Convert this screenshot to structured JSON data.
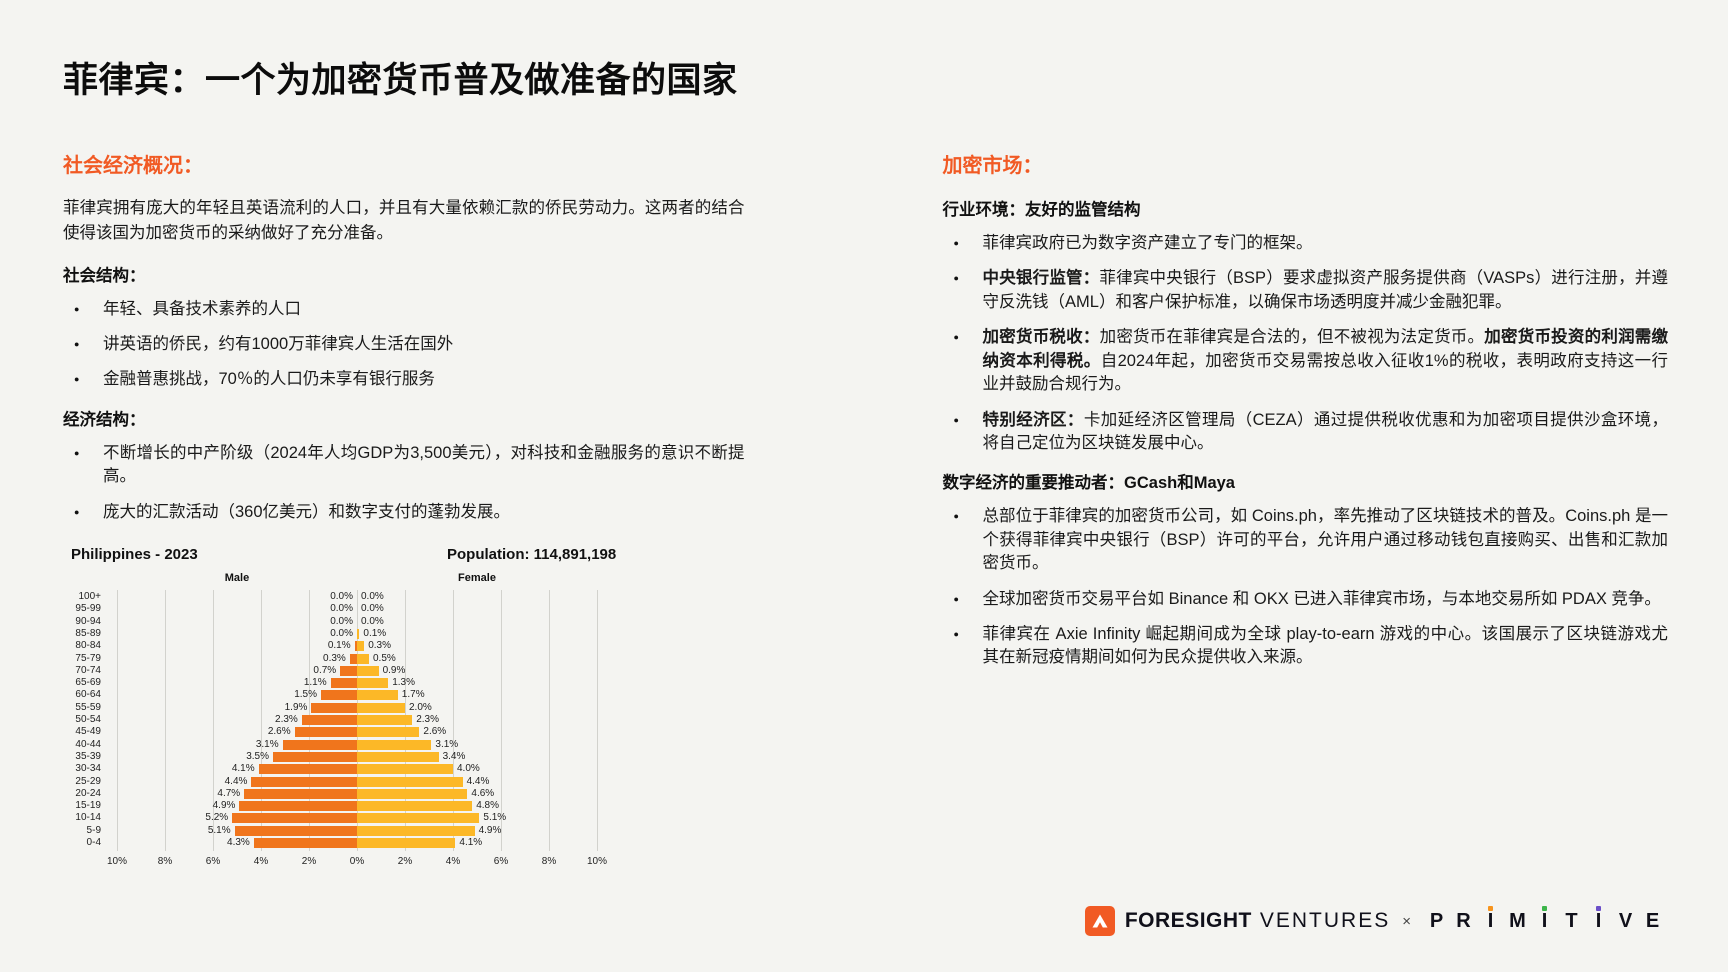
{
  "page": {
    "title": "菲律宾：一个为加密货币普及做准备的国家",
    "background_color": "#f4f4f1",
    "accent_color": "#f15a24"
  },
  "left": {
    "heading": "社会经济概况：",
    "intro": "菲律宾拥有庞大的年轻且英语流利的人口，并且有大量依赖汇款的侨民劳动力。这两者的结合使得该国为加密货币的采纳做好了充分准备。",
    "sections": [
      {
        "subheading": "社会结构：",
        "bullets": [
          {
            "runs": [
              {
                "text": "年轻、具备技术素养的人口",
                "bold": false
              }
            ]
          },
          {
            "runs": [
              {
                "text": "讲英语的侨民，约有1000万菲律宾人生活在国外",
                "bold": false
              }
            ]
          },
          {
            "runs": [
              {
                "text": "金融普惠挑战，70％的人口仍未享有银行服务",
                "bold": false
              }
            ]
          }
        ]
      },
      {
        "subheading": "经济结构：",
        "bullets": [
          {
            "runs": [
              {
                "text": "不断增长的中产阶级（2024年人均GDP为3,500美元），对科技和金融服务的意识不断提高。",
                "bold": false
              }
            ]
          },
          {
            "runs": [
              {
                "text": "庞大的汇款活动（360亿美元）和数字支付的蓬勃发展。",
                "bold": false
              }
            ]
          }
        ]
      }
    ]
  },
  "right": {
    "heading": "加密市场：",
    "sections": [
      {
        "subheading": "行业环境：友好的监管结构",
        "bullets": [
          {
            "runs": [
              {
                "text": "菲律宾政府已为数字资产建立了专门的框架。",
                "bold": false
              }
            ]
          },
          {
            "runs": [
              {
                "text": "中央银行监管：",
                "bold": true
              },
              {
                "text": "菲律宾中央银行（BSP）要求虚拟资产服务提供商（VASPs）进行注册，并遵守反洗钱（AML）和客户保护标准，以确保市场透明度并减少金融犯罪。",
                "bold": false
              }
            ]
          },
          {
            "runs": [
              {
                "text": "加密货币税收：",
                "bold": true
              },
              {
                "text": "加密货币在菲律宾是合法的，但不被视为法定货币。",
                "bold": false
              },
              {
                "text": "加密货币投资的利润需缴纳资本利得税。",
                "bold": true
              },
              {
                "text": "自2024年起，加密货币交易需按总收入征收1%的税收，表明政府支持这一行业并鼓励合规行为。",
                "bold": false
              }
            ]
          },
          {
            "runs": [
              {
                "text": "特别经济区：",
                "bold": true
              },
              {
                "text": "卡加延经济区管理局（CEZA）通过提供税收优惠和为加密项目提供沙盒环境，将自己定位为区块链发展中心。",
                "bold": false
              }
            ]
          }
        ]
      },
      {
        "subheading": "数字经济的重要推动者：GCash和Maya",
        "bullets": [
          {
            "runs": [
              {
                "text": "总部位于菲律宾的加密货币公司，如 Coins.ph，率先推动了区块链技术的普及。Coins.ph 是一个获得菲律宾中央银行（BSP）许可的平台，允许用户通过移动钱包直接购买、出售和汇款加密货币。",
                "bold": false
              }
            ]
          },
          {
            "runs": [
              {
                "text": "全球加密货币交易平台如 Binance 和 OKX 已进入菲律宾市场，与本地交易所如 PDAX 竞争。",
                "bold": false
              }
            ]
          },
          {
            "runs": [
              {
                "text": "菲律宾在 Axie Infinity 崛起期间成为全球 play-to-earn 游戏的中心。该国展示了区块链游戏尤其在新冠疫情期间如何为民众提供收入来源。",
                "bold": false
              }
            ]
          }
        ]
      }
    ]
  },
  "chart_data": {
    "type": "bar",
    "subtype": "population-pyramid",
    "title": "Philippines - 2023",
    "population_label": "Population: 114,891,198",
    "male_label": "Male",
    "female_label": "Female",
    "age_groups": [
      "100+",
      "95-99",
      "90-94",
      "85-89",
      "80-84",
      "75-79",
      "70-74",
      "65-69",
      "60-64",
      "55-59",
      "50-54",
      "45-49",
      "40-44",
      "35-39",
      "30-34",
      "25-29",
      "20-24",
      "15-19",
      "10-14",
      "5-9",
      "0-4"
    ],
    "series": [
      {
        "name": "Male",
        "color": "#f0751c",
        "values": [
          0.0,
          0.0,
          0.0,
          0.0,
          0.1,
          0.3,
          0.7,
          1.1,
          1.5,
          1.9,
          2.3,
          2.6,
          3.1,
          3.5,
          4.1,
          4.4,
          4.7,
          4.9,
          5.2,
          5.1,
          4.3
        ]
      },
      {
        "name": "Female",
        "color": "#fcb827",
        "values": [
          0.0,
          0.0,
          0.0,
          0.1,
          0.3,
          0.5,
          0.9,
          1.3,
          1.7,
          2.0,
          2.3,
          2.6,
          3.1,
          3.4,
          4.0,
          4.4,
          4.6,
          4.8,
          5.1,
          4.9,
          4.1
        ]
      }
    ],
    "x_ticks": [
      "10%",
      "8%",
      "6%",
      "4%",
      "2%",
      "0%",
      "2%",
      "4%",
      "6%",
      "8%",
      "10%"
    ],
    "x_max": 10,
    "value_unit": "%",
    "grid": true,
    "legend_position": "none"
  },
  "footer": {
    "foresight": "FORESIGHT",
    "ventures": "VENTURES",
    "multiply": "×",
    "primitive": "PRIMITIVE",
    "logo_color": "#f15a24",
    "dot_colors": [
      "#f7941d",
      "#3cb54a",
      "#6b4fc9"
    ]
  }
}
